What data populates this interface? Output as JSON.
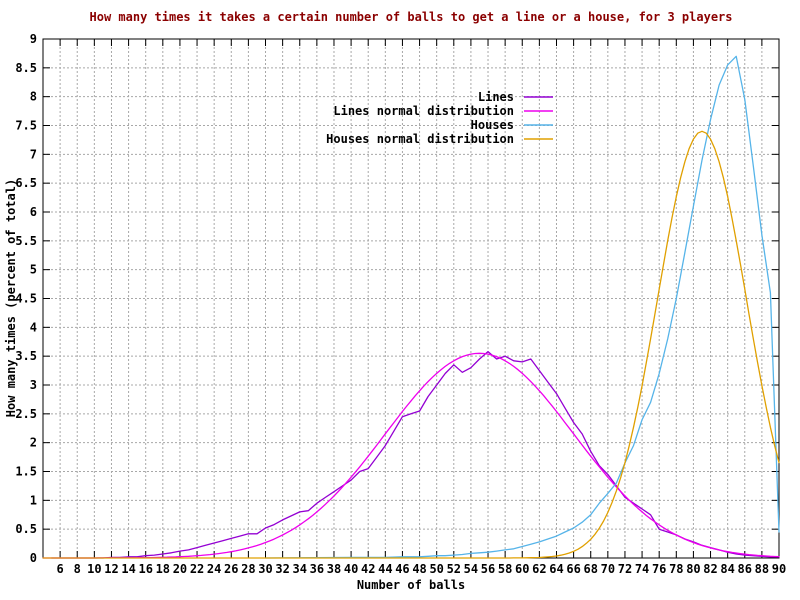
{
  "title": "How many times it takes a certain number of balls to get a line or a house, for 3 players",
  "title_color": "#8B0000",
  "axes": {
    "x_label": "Number of balls",
    "y_label": "How many times (percent of total)",
    "x_range": [
      4,
      90
    ],
    "y_range": [
      0,
      9
    ],
    "x_ticks": [
      6,
      8,
      10,
      12,
      14,
      16,
      18,
      20,
      22,
      24,
      26,
      28,
      30,
      32,
      34,
      36,
      38,
      40,
      42,
      44,
      46,
      48,
      50,
      52,
      54,
      56,
      58,
      60,
      62,
      64,
      66,
      68,
      70,
      72,
      74,
      76,
      78,
      80,
      82,
      84,
      86,
      88,
      90
    ],
    "y_ticks": [
      0,
      0.5,
      1,
      1.5,
      2,
      2.5,
      3,
      3.5,
      4,
      4.5,
      5,
      5.5,
      6,
      6.5,
      7,
      7.5,
      8,
      8.5,
      9
    ],
    "grid_color": "#a8a8a8",
    "border_color": "#000000",
    "text_color": "#000000"
  },
  "legend": [
    {
      "label": "Lines",
      "color": "#9400D3"
    },
    {
      "label": "Lines normal distribution",
      "color": "#EE00EE"
    },
    {
      "label": "Houses",
      "color": "#56B4E9"
    },
    {
      "label": "Houses normal distribution",
      "color": "#E0A000"
    }
  ],
  "chart_data": {
    "type": "line",
    "title": "How many times it takes a certain number of balls to get a line or a house, for 3 players",
    "xlabel": "Number of balls",
    "ylabel": "How many times (percent of total)",
    "xlim": [
      4,
      90
    ],
    "ylim": [
      0,
      9
    ],
    "grid": true,
    "legend_position": "top-center",
    "series": [
      {
        "name": "Lines",
        "color": "#9400D3",
        "points": [
          [
            5,
            0
          ],
          [
            8,
            0
          ],
          [
            11,
            0
          ],
          [
            12,
            0.01
          ],
          [
            13,
            0.01
          ],
          [
            14,
            0.02
          ],
          [
            15,
            0.02
          ],
          [
            16,
            0.04
          ],
          [
            17,
            0.05
          ],
          [
            18,
            0.07
          ],
          [
            19,
            0.09
          ],
          [
            20,
            0.12
          ],
          [
            21,
            0.14
          ],
          [
            22,
            0.18
          ],
          [
            23,
            0.22
          ],
          [
            24,
            0.26
          ],
          [
            25,
            0.3
          ],
          [
            26,
            0.34
          ],
          [
            27,
            0.38
          ],
          [
            28,
            0.42
          ],
          [
            29,
            0.42
          ],
          [
            30,
            0.52
          ],
          [
            31,
            0.58
          ],
          [
            32,
            0.66
          ],
          [
            33,
            0.73
          ],
          [
            34,
            0.8
          ],
          [
            35,
            0.82
          ],
          [
            36,
            0.95
          ],
          [
            37,
            1.05
          ],
          [
            38,
            1.15
          ],
          [
            39,
            1.25
          ],
          [
            40,
            1.35
          ],
          [
            41,
            1.5
          ],
          [
            42,
            1.55
          ],
          [
            43,
            1.75
          ],
          [
            44,
            1.95
          ],
          [
            45,
            2.2
          ],
          [
            46,
            2.45
          ],
          [
            47,
            2.5
          ],
          [
            48,
            2.55
          ],
          [
            49,
            2.8
          ],
          [
            50,
            3.0
          ],
          [
            51,
            3.2
          ],
          [
            52,
            3.35
          ],
          [
            53,
            3.22
          ],
          [
            54,
            3.3
          ],
          [
            55,
            3.45
          ],
          [
            56,
            3.58
          ],
          [
            57,
            3.45
          ],
          [
            58,
            3.5
          ],
          [
            59,
            3.42
          ],
          [
            60,
            3.4
          ],
          [
            61,
            3.45
          ],
          [
            62,
            3.25
          ],
          [
            63,
            3.05
          ],
          [
            64,
            2.85
          ],
          [
            65,
            2.6
          ],
          [
            66,
            2.35
          ],
          [
            67,
            2.15
          ],
          [
            68,
            1.85
          ],
          [
            69,
            1.6
          ],
          [
            70,
            1.45
          ],
          [
            71,
            1.25
          ],
          [
            72,
            1.05
          ],
          [
            73,
            0.95
          ],
          [
            74,
            0.85
          ],
          [
            75,
            0.75
          ],
          [
            76,
            0.5
          ],
          [
            77,
            0.45
          ],
          [
            78,
            0.4
          ],
          [
            79,
            0.33
          ],
          [
            80,
            0.28
          ],
          [
            81,
            0.22
          ],
          [
            82,
            0.18
          ],
          [
            83,
            0.14
          ],
          [
            84,
            0.1
          ],
          [
            85,
            0.07
          ],
          [
            86,
            0.05
          ],
          [
            87,
            0.04
          ],
          [
            88,
            0.03
          ],
          [
            89,
            0.02
          ],
          [
            90,
            0.02
          ]
        ]
      },
      {
        "name": "Lines normal distribution",
        "color": "#EE00EE",
        "gaussian": {
          "mean": 55,
          "sd": 11,
          "peak": 3.55
        },
        "sample_range": [
          4,
          90
        ],
        "sample_step": 0.5
      },
      {
        "name": "Houses",
        "color": "#56B4E9",
        "points": [
          [
            30,
            0
          ],
          [
            40,
            0.01
          ],
          [
            44,
            0.01
          ],
          [
            46,
            0.02
          ],
          [
            47,
            0.02
          ],
          [
            48,
            0.02
          ],
          [
            49,
            0.03
          ],
          [
            50,
            0.04
          ],
          [
            51,
            0.04
          ],
          [
            52,
            0.05
          ],
          [
            53,
            0.06
          ],
          [
            54,
            0.08
          ],
          [
            55,
            0.09
          ],
          [
            56,
            0.1
          ],
          [
            57,
            0.12
          ],
          [
            58,
            0.14
          ],
          [
            59,
            0.16
          ],
          [
            60,
            0.2
          ],
          [
            61,
            0.24
          ],
          [
            62,
            0.28
          ],
          [
            63,
            0.33
          ],
          [
            64,
            0.38
          ],
          [
            65,
            0.45
          ],
          [
            66,
            0.52
          ],
          [
            67,
            0.62
          ],
          [
            68,
            0.75
          ],
          [
            69,
            0.95
          ],
          [
            70,
            1.12
          ],
          [
            71,
            1.3
          ],
          [
            72,
            1.65
          ],
          [
            73,
            1.95
          ],
          [
            74,
            2.4
          ],
          [
            75,
            2.7
          ],
          [
            76,
            3.2
          ],
          [
            77,
            3.8
          ],
          [
            78,
            4.5
          ],
          [
            79,
            5.3
          ],
          [
            80,
            6.1
          ],
          [
            81,
            6.9
          ],
          [
            82,
            7.6
          ],
          [
            83,
            8.2
          ],
          [
            84,
            8.55
          ],
          [
            85,
            8.7
          ],
          [
            86,
            7.95
          ],
          [
            87,
            6.8
          ],
          [
            88,
            5.6
          ],
          [
            89,
            4.6
          ],
          [
            90,
            0.45
          ]
        ]
      },
      {
        "name": "Houses normal distribution",
        "color": "#E0A000",
        "gaussian": {
          "mean": 81,
          "sd": 5.2,
          "peak": 7.4
        },
        "sample_range": [
          4,
          90
        ],
        "sample_step": 0.5
      }
    ]
  }
}
